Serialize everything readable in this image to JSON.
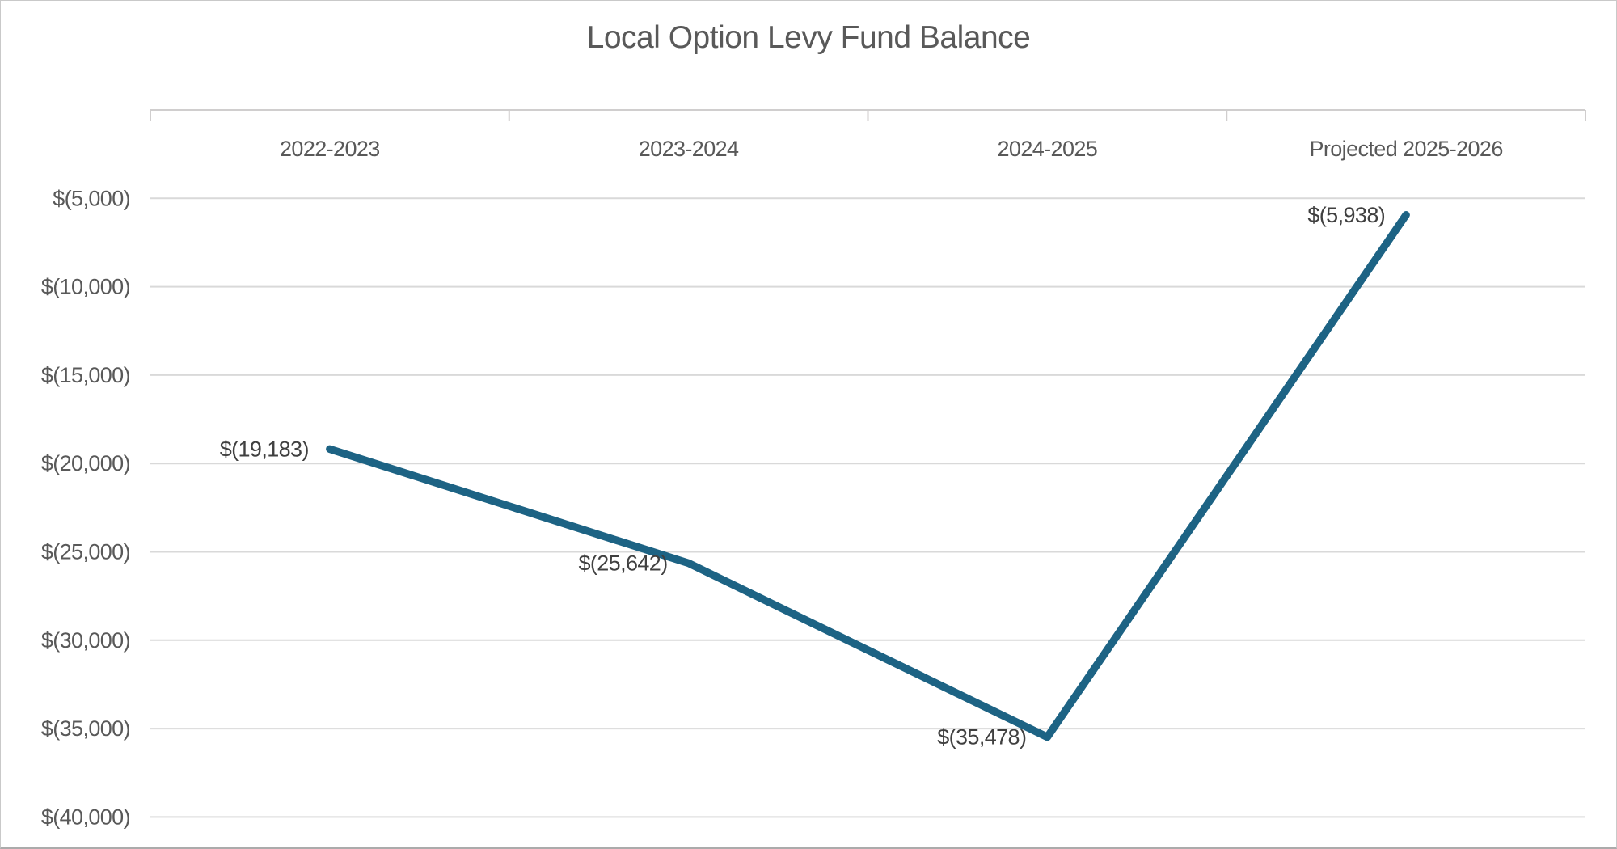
{
  "chart_data": {
    "type": "line",
    "title": "Local Option Levy Fund Balance",
    "categories": [
      "2022-2023",
      "2023-2024",
      "2024-2025",
      "Projected 2025-2026"
    ],
    "values": [
      -19183,
      -25642,
      -35478,
      -5938
    ],
    "data_labels": [
      "$(19,183)",
      "$(25,642)",
      "$(35,478)",
      "$(5,938)"
    ],
    "y_axis": {
      "min": -40000,
      "max": 0,
      "ticks": [
        {
          "value": -5000,
          "label": "$(5,000)"
        },
        {
          "value": -10000,
          "label": "$(10,000)"
        },
        {
          "value": -15000,
          "label": "$(15,000)"
        },
        {
          "value": -20000,
          "label": "$(20,000)"
        },
        {
          "value": -25000,
          "label": "$(25,000)"
        },
        {
          "value": -30000,
          "label": "$(30,000)"
        },
        {
          "value": -35000,
          "label": "$(35,000)"
        },
        {
          "value": -40000,
          "label": "$(40,000)"
        }
      ]
    },
    "x_axis_position": "top",
    "grid": true,
    "legend": false,
    "colors": {
      "line": "#1d6384",
      "gridline": "#d9d9d9",
      "axis_line": "#d0cece",
      "title_text": "#595959",
      "axis_text": "#595959",
      "data_label_text": "#404040"
    }
  }
}
